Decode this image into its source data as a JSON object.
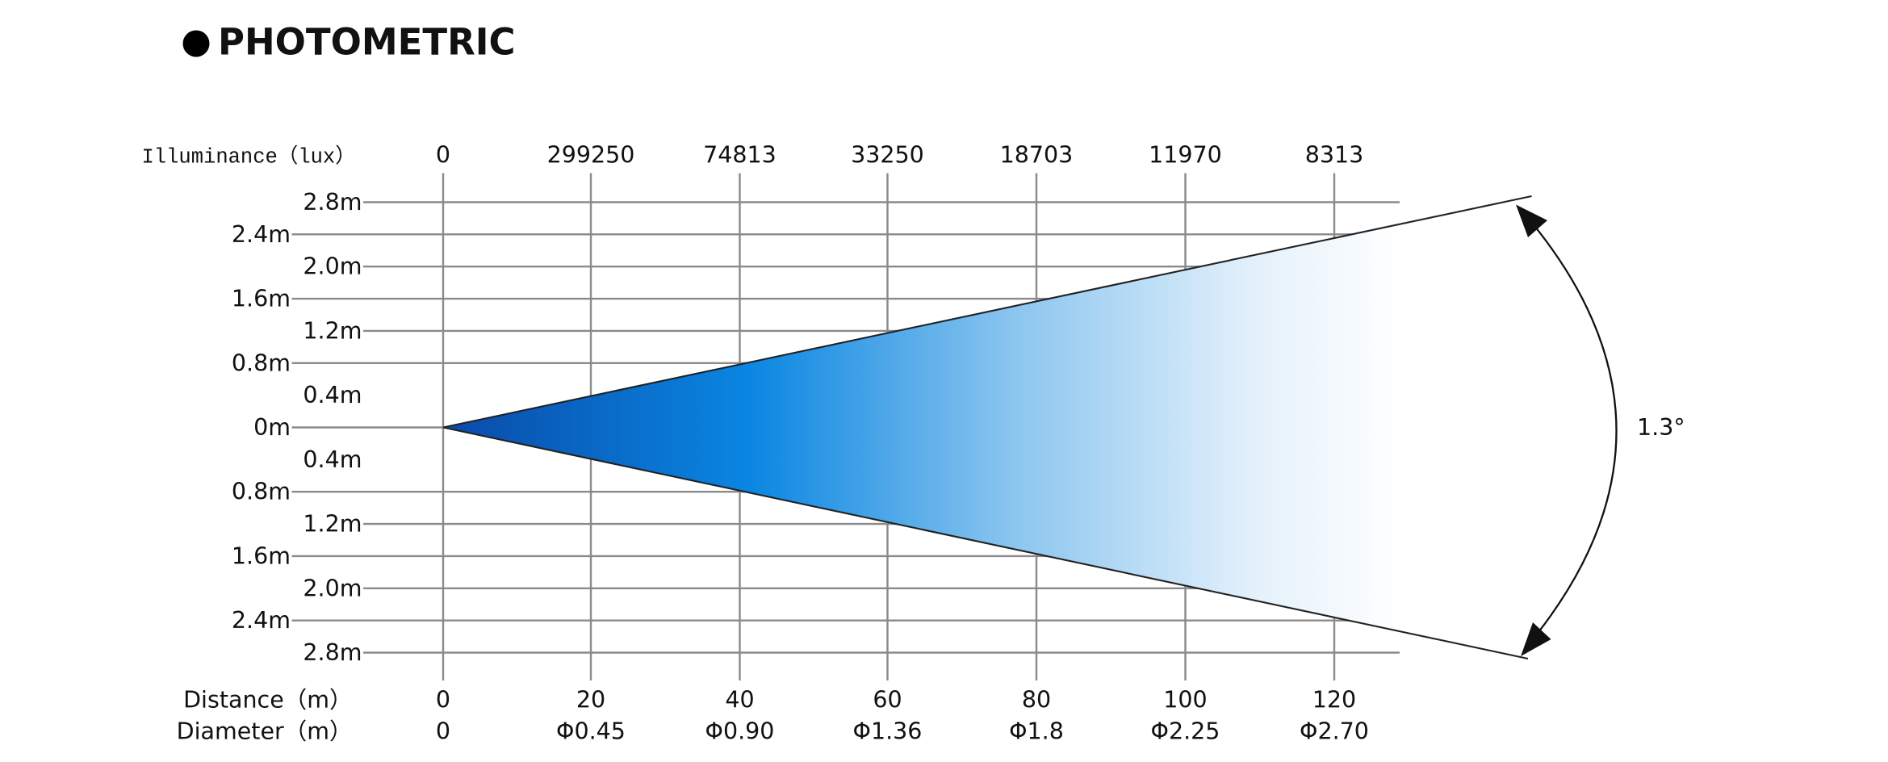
{
  "title": "PHOTOMETRIC",
  "illuminance": {
    "label": "Illuminance（lux）",
    "values": [
      "0",
      "299250",
      "74813",
      "33250",
      "18703",
      "11970",
      "8313"
    ]
  },
  "distance": {
    "label": "Distance（m）",
    "values": [
      "0",
      "20",
      "40",
      "60",
      "80",
      "100",
      "120"
    ]
  },
  "diameter": {
    "label": "Diameter（m）",
    "values": [
      "0",
      "Φ0.45",
      "Φ0.90",
      "Φ1.36",
      "Φ1.8",
      "Φ2.25",
      "Φ2.70"
    ]
  },
  "heights": [
    "2.8m",
    "2.4m",
    "2.0m",
    "1.6m",
    "1.2m",
    "0.8m",
    "0.4m",
    "0m",
    "0.4m",
    "0.8m",
    "1.2m",
    "1.6m",
    "2.0m",
    "2.4m",
    "2.8m"
  ],
  "beam_angle": "1.3°"
}
